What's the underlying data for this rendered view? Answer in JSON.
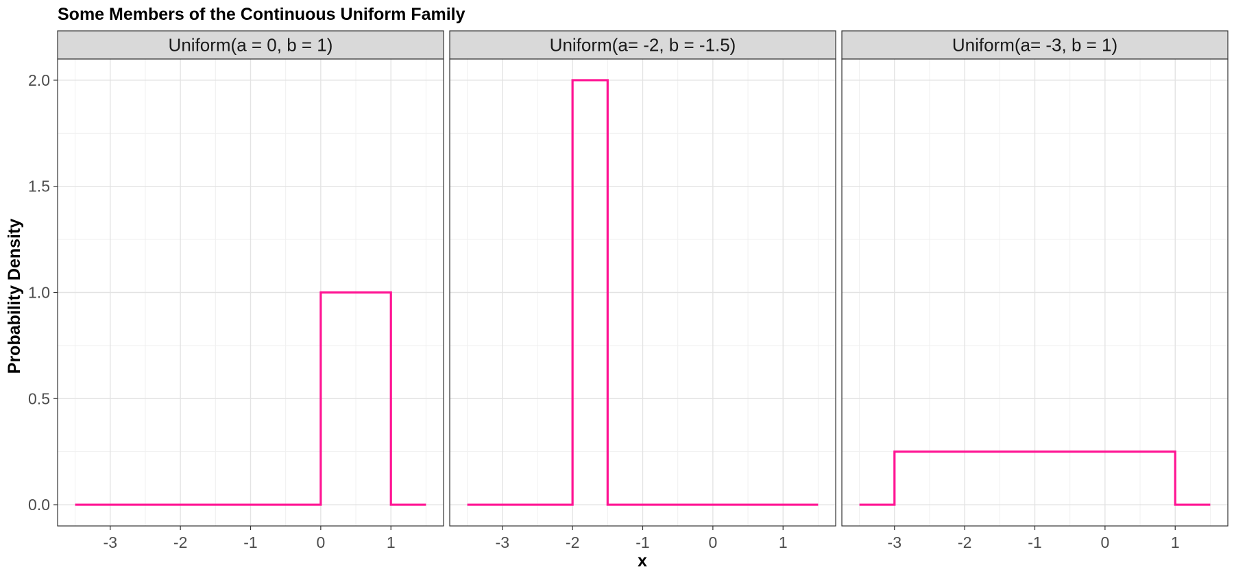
{
  "chart_data": {
    "type": "line",
    "title": "Some Members of the Continuous Uniform Family",
    "xlabel": "x",
    "ylabel": "Probability Density",
    "xlim": [
      -3.75,
      1.75
    ],
    "ylim": [
      -0.1,
      2.1
    ],
    "x_ticks": [
      -3,
      -2,
      -1,
      0,
      1
    ],
    "y_ticks": [
      0.0,
      0.5,
      1.0,
      1.5,
      2.0
    ],
    "y_tick_labels": [
      "0.0",
      "0.5",
      "1.0",
      "1.5",
      "2.0"
    ],
    "grid": true,
    "line_color": "#FF1493",
    "panels": [
      {
        "label": "Uniform(a = 0, b = 1)",
        "points": [
          [
            -3.5,
            0
          ],
          [
            0,
            0
          ],
          [
            0,
            1
          ],
          [
            1,
            1
          ],
          [
            1,
            0
          ],
          [
            1.5,
            0
          ]
        ]
      },
      {
        "label": "Uniform(a= -2, b = -1.5)",
        "points": [
          [
            -3.5,
            0
          ],
          [
            -2,
            0
          ],
          [
            -2,
            2
          ],
          [
            -1.5,
            2
          ],
          [
            -1.5,
            0
          ],
          [
            1.5,
            0
          ]
        ]
      },
      {
        "label": "Uniform(a= -3, b = 1)",
        "points": [
          [
            -3.5,
            0
          ],
          [
            -3,
            0
          ],
          [
            -3,
            0.25
          ],
          [
            1,
            0.25
          ],
          [
            1,
            0
          ],
          [
            1.5,
            0
          ]
        ]
      }
    ]
  }
}
